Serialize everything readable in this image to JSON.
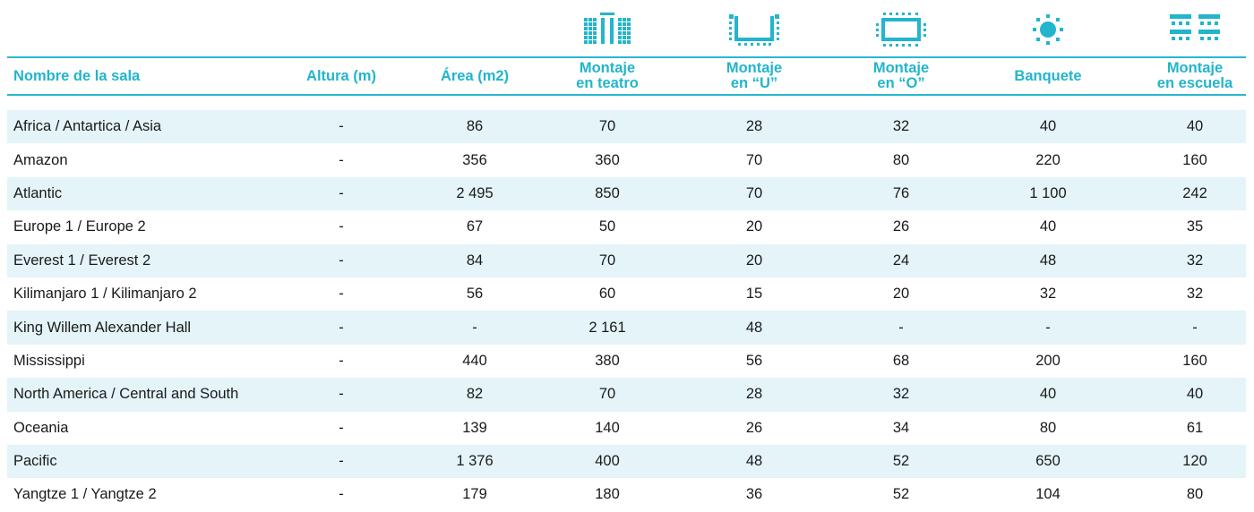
{
  "accent_color": "#22b5cc",
  "row_alt_color": "#e4f4f8",
  "icons": [
    "theater-seating-icon",
    "u-shape-icon",
    "o-shape-icon",
    "banquet-icon",
    "classroom-icon"
  ],
  "headers": [
    "Nombre de la sala",
    "Altura (m)",
    "Área (m2)",
    "Montaje\nen teatro",
    "Montaje\nen “U”",
    "Montaje\nen “O”",
    "Banquete",
    "Montaje\nen escuela"
  ],
  "rows": [
    [
      "Africa / Antartica / Asia",
      "-",
      "86",
      "70",
      "28",
      "32",
      "40",
      "40"
    ],
    [
      "Amazon",
      "-",
      "356",
      "360",
      "70",
      "80",
      "220",
      "160"
    ],
    [
      "Atlantic",
      "-",
      "2 495",
      "850",
      "70",
      "76",
      "1 100",
      "242"
    ],
    [
      "Europe 1 / Europe 2",
      "-",
      "67",
      "50",
      "20",
      "26",
      "40",
      "35"
    ],
    [
      "Everest 1 / Everest 2",
      "-",
      "84",
      "70",
      "20",
      "24",
      "48",
      "32"
    ],
    [
      "Kilimanjaro 1 / Kilimanjaro 2",
      "-",
      "56",
      "60",
      "15",
      "20",
      "32",
      "32"
    ],
    [
      "King Willem Alexander Hall",
      "-",
      "-",
      "2 161",
      "48",
      "-",
      "-",
      "-"
    ],
    [
      "Mississippi",
      "-",
      "440",
      "380",
      "56",
      "68",
      "200",
      "160"
    ],
    [
      "North America / Central and South",
      "-",
      "82",
      "70",
      "28",
      "32",
      "40",
      "40"
    ],
    [
      "Oceania",
      "-",
      "139",
      "140",
      "26",
      "34",
      "80",
      "61"
    ],
    [
      "Pacific",
      "-",
      "1 376",
      "400",
      "48",
      "52",
      "650",
      "120"
    ],
    [
      "Yangtze 1 / Yangtze 2",
      "-",
      "179",
      "180",
      "36",
      "52",
      "104",
      "80"
    ]
  ]
}
